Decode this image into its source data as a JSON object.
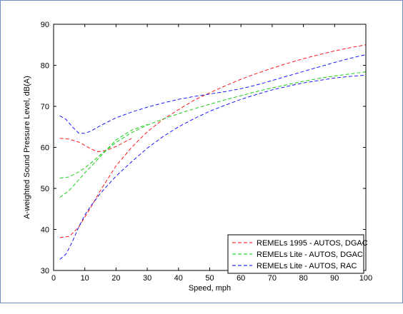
{
  "chart_data": {
    "type": "line",
    "title": "",
    "xlabel": "Speed, mph",
    "ylabel": "A-weighted Sound Pressure Level, dB(A)",
    "xlim": [
      0,
      100
    ],
    "ylim": [
      30,
      90
    ],
    "xticks": [
      0,
      10,
      20,
      30,
      40,
      50,
      60,
      70,
      80,
      90,
      100
    ],
    "yticks": [
      30,
      40,
      50,
      60,
      70,
      80,
      90
    ],
    "grid": false,
    "legend_position": "bottom-right",
    "series": [
      {
        "name": "REMELs 1995 - AUTOS, DGAC",
        "color": "#ff0000",
        "dash": "dashed",
        "x": [
          2,
          5,
          8,
          10,
          12,
          15,
          20,
          25,
          30,
          35,
          40,
          45,
          50,
          55,
          60,
          65,
          70,
          75,
          80,
          85,
          90,
          95,
          100
        ],
        "y": [
          38,
          38.3,
          40.5,
          43,
          45.5,
          49.5,
          55.5,
          60,
          63.8,
          66.8,
          69.2,
          71.5,
          73.3,
          75,
          76.6,
          78,
          79.3,
          80.5,
          81.6,
          82.6,
          83.5,
          84.3,
          85
        ]
      },
      {
        "name": "",
        "color": "#ff0000",
        "dash": "dashed",
        "x": [
          2,
          5,
          8,
          10,
          12,
          14,
          15,
          17,
          20,
          25
        ],
        "y": [
          62.2,
          62,
          61.3,
          60.5,
          59.6,
          59,
          59,
          59.3,
          60.2,
          62.2
        ]
      },
      {
        "name": "REMELs Lite - AUTOS, DGAC",
        "color": "#00cc00",
        "dash": "dashed",
        "x": [
          2,
          5,
          8,
          10,
          12,
          15,
          20,
          25,
          30,
          35,
          40,
          45,
          50,
          55,
          60,
          65,
          70,
          75,
          80,
          85,
          90,
          95,
          100
        ],
        "y": [
          52.5,
          52.8,
          54,
          55,
          56.2,
          58.2,
          61.2,
          63.6,
          65.4,
          66.9,
          68.2,
          69.4,
          70.5,
          71.6,
          72.6,
          73.6,
          74.5,
          75.3,
          76.1,
          76.8,
          77.4,
          77.9,
          78.4
        ]
      },
      {
        "name": "",
        "color": "#00cc00",
        "dash": "dashed",
        "x": [
          2,
          5,
          8,
          10,
          12,
          15,
          20,
          25,
          30
        ],
        "y": [
          47.8,
          49.5,
          52,
          53.8,
          55.3,
          57.8,
          61.8,
          64.2,
          65.6
        ]
      },
      {
        "name": "REMELs Lite - AUTOS, RAC",
        "color": "#0000ff",
        "dash": "dashed",
        "x": [
          2,
          4,
          6,
          8,
          10,
          12,
          15,
          20,
          25,
          30,
          35,
          40,
          45,
          50,
          55,
          60,
          65,
          70,
          75,
          80,
          85,
          90,
          95,
          100
        ],
        "y": [
          67.7,
          66.8,
          65,
          63.5,
          63.4,
          64,
          65.3,
          67.2,
          68.6,
          69.8,
          70.8,
          71.7,
          72.4,
          73,
          73.6,
          74.3,
          75.2,
          76.3,
          77.4,
          78.5,
          79.6,
          80.7,
          81.7,
          82.6
        ]
      },
      {
        "name": "",
        "color": "#0000ff",
        "dash": "dashed",
        "x": [
          2,
          4,
          6,
          8,
          10,
          12,
          15,
          20,
          25,
          30,
          35,
          40,
          45,
          50,
          55,
          60,
          65,
          70,
          75,
          80,
          85,
          90,
          95,
          100
        ],
        "y": [
          32.7,
          34,
          37,
          40.5,
          43.5,
          45.8,
          48.8,
          53,
          56.5,
          59.8,
          62.6,
          65,
          67,
          68.8,
          70.3,
          71.7,
          72.9,
          74,
          74.9,
          75.7,
          76.3,
          76.9,
          77.3,
          77.6
        ]
      }
    ]
  }
}
